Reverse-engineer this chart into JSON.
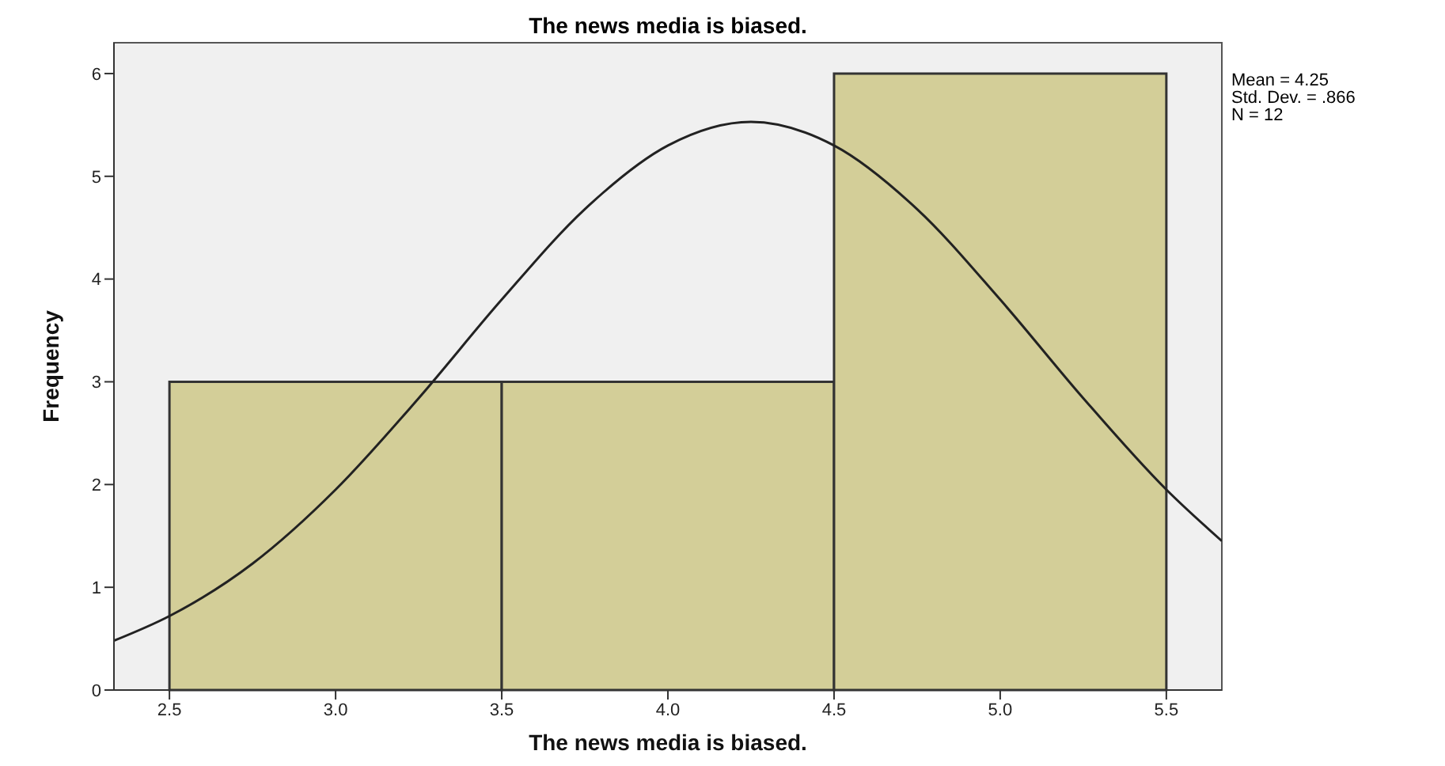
{
  "chart_data": {
    "type": "histogram",
    "title": "The news media is biased.",
    "xlabel": "The news media is biased.",
    "ylabel": "Frequency",
    "bins": [
      2.5,
      3.5,
      4.5,
      5.5
    ],
    "values": [
      3,
      3,
      6
    ],
    "color": "#d3ce98",
    "series": [
      {
        "type": "line",
        "color": "#222222",
        "x": [
          2.333,
          2.5,
          2.75,
          3.0,
          3.25,
          3.5,
          3.75,
          4.0,
          4.25,
          4.5,
          4.75,
          5.0,
          5.25,
          5.5,
          5.667
        ],
        "values": [
          0.48,
          0.72,
          1.23,
          1.95,
          2.84,
          3.8,
          4.68,
          5.3,
          5.53,
          5.3,
          4.68,
          3.8,
          2.84,
          1.95,
          1.45
        ]
      }
    ],
    "xlim": [
      2.333,
      5.667
    ],
    "xticks": [
      {
        "value": 2.5,
        "label": "2.5"
      },
      {
        "value": 3,
        "label": "3.0"
      },
      {
        "value": 3.5,
        "label": "3.5"
      },
      {
        "value": 4,
        "label": "4.0"
      },
      {
        "value": 4.5,
        "label": "4.5"
      },
      {
        "value": 5,
        "label": "5.0"
      },
      {
        "value": 5.5,
        "label": "5.5"
      }
    ],
    "ylim": [
      0,
      6.3
    ],
    "yticks": [
      0,
      1,
      2,
      3,
      4,
      5,
      6
    ],
    "annotations": [
      "Mean = 4.25",
      "Std. Dev. = .866",
      "N = 12"
    ],
    "grid": false,
    "marker": "none"
  }
}
